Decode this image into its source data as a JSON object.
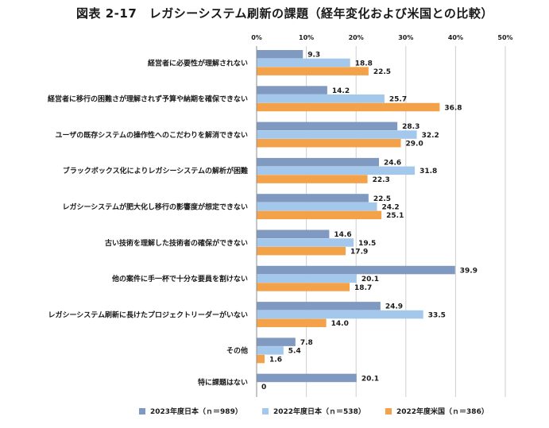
{
  "title": "図表 2-17　レガシーシステム刷新の課題（経年変化および米国との比較）",
  "colors": {
    "s2023": "#7f99c0",
    "s2022jp": "#a3c8ec",
    "s2022us": "#f4a24a",
    "grid": "#cfcfcf",
    "axis": "#8c8c8c"
  },
  "chart_data": {
    "type": "bar",
    "orientation": "horizontal",
    "title": "図表 2-17　レガシーシステム刷新の課題（経年変化および米国との比較）",
    "xlim": [
      0,
      50
    ],
    "x_ticks": [
      "0%",
      "10%",
      "20%",
      "30%",
      "40%",
      "50%"
    ],
    "x_tick_values": [
      0,
      10,
      20,
      30,
      40,
      50
    ],
    "categories": [
      "経営者に必要性が理解されない",
      "経営者に移行の困難さが理解されず予算や納期を確保できない",
      "ユーザの既存システムの操作性へのこだわりを解消できない",
      "ブラックボックス化によりレガシーシステムの解析が困難",
      "レガシーシステムが肥大化し移行の影響度が想定できない",
      "古い技術を理解した技術者の確保ができない",
      "他の案件に手一杯で十分な要員を割けない",
      "レガシーシステム刷新に長けたプロジェクトリーダーがいない",
      "その他",
      "特に課題はない"
    ],
    "series": [
      {
        "name": "2023年度日本（ｎ＝989）",
        "color_key": "s2023",
        "values": [
          9.3,
          14.2,
          28.3,
          24.6,
          22.5,
          14.6,
          39.9,
          24.9,
          7.8,
          20.1
        ]
      },
      {
        "name": "2022年度日本（ｎ＝538）",
        "color_key": "s2022jp",
        "values": [
          18.8,
          25.7,
          32.2,
          31.8,
          24.2,
          19.5,
          20.1,
          33.5,
          5.4,
          0
        ]
      },
      {
        "name": "2022年度米国（ｎ＝386）",
        "color_key": "s2022us",
        "values": [
          22.5,
          36.8,
          29.0,
          22.3,
          25.1,
          17.9,
          18.7,
          14.0,
          1.6,
          null
        ]
      }
    ]
  }
}
